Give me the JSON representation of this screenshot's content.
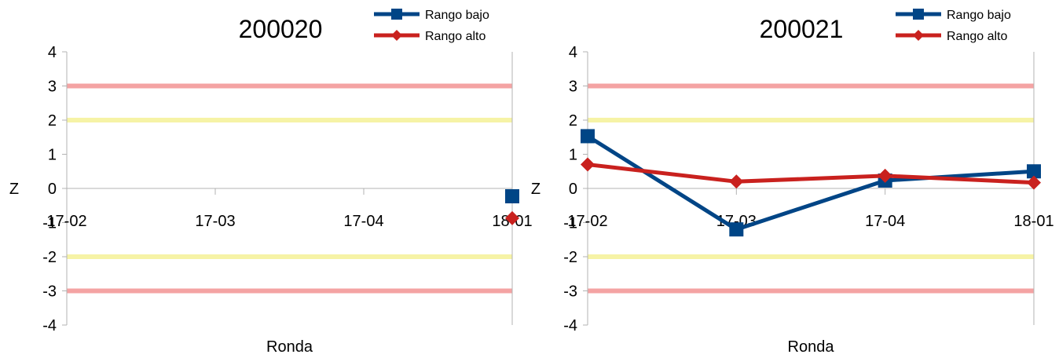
{
  "chart_data": [
    {
      "type": "line",
      "title": "200020",
      "xlabel": "Ronda",
      "ylabel": "Z",
      "categories": [
        "17-02",
        "17-03",
        "17-04",
        "18-01"
      ],
      "ylim": [
        -4,
        4
      ],
      "yticks": [
        4,
        3,
        2,
        1,
        0,
        -1,
        -2,
        -3,
        -4
      ],
      "series": [
        {
          "name": "Rango bajo",
          "color": "#004586",
          "marker": "square",
          "values": [
            null,
            null,
            null,
            -0.23
          ]
        },
        {
          "name": "Rango alto",
          "color": "#c9211e",
          "marker": "diamond",
          "values": [
            null,
            null,
            null,
            -0.87
          ]
        }
      ],
      "reference_lines": [
        {
          "y": 3,
          "color": "#f4a3a3"
        },
        {
          "y": 2,
          "color": "#f6f3a6"
        },
        {
          "y": -2,
          "color": "#f6f3a6"
        },
        {
          "y": -3,
          "color": "#f4a3a3"
        }
      ],
      "grid": false,
      "legend": "top-right"
    },
    {
      "type": "line",
      "title": "200021",
      "xlabel": "Ronda",
      "ylabel": "Z",
      "categories": [
        "17-02",
        "17-03",
        "17-04",
        "18-01"
      ],
      "ylim": [
        -4,
        4
      ],
      "yticks": [
        4,
        3,
        2,
        1,
        0,
        -1,
        -2,
        -3,
        -4
      ],
      "series": [
        {
          "name": "Rango bajo",
          "color": "#004586",
          "marker": "square",
          "values": [
            1.53,
            -1.2,
            0.23,
            0.5
          ]
        },
        {
          "name": "Rango alto",
          "color": "#c9211e",
          "marker": "diamond",
          "values": [
            0.7,
            0.2,
            0.37,
            0.17
          ]
        }
      ],
      "reference_lines": [
        {
          "y": 3,
          "color": "#f4a3a3"
        },
        {
          "y": 2,
          "color": "#f6f3a6"
        },
        {
          "y": -2,
          "color": "#f6f3a6"
        },
        {
          "y": -3,
          "color": "#f4a3a3"
        }
      ],
      "grid": false,
      "legend": "top-right"
    }
  ]
}
